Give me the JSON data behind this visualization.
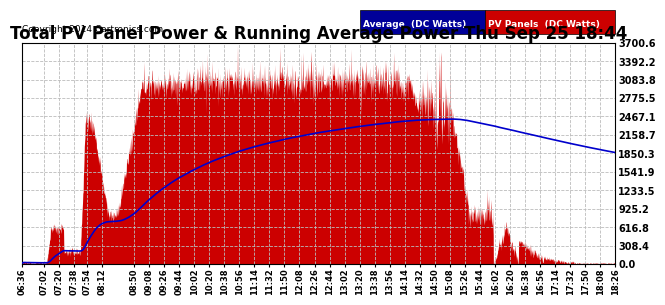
{
  "title": "Total PV Panel Power & Running Average Power Thu Sep 25 18:44",
  "copyright": "Copyright 2014 Cartronics.com",
  "legend_avg": "Average  (DC Watts)",
  "legend_pv": "PV Panels  (DC Watts)",
  "ymax": 3700.6,
  "ymin": 0.0,
  "yticks": [
    0.0,
    308.4,
    616.8,
    925.2,
    1233.5,
    1541.9,
    1850.3,
    2158.7,
    2467.1,
    2775.5,
    3083.8,
    3392.2,
    3700.6
  ],
  "bg_color": "#ffffff",
  "grid_color": "#bbbbbb",
  "pv_color": "#cc0000",
  "avg_color": "#0000cc",
  "title_fontsize": 12,
  "x_tick_labels": [
    "06:36",
    "07:02",
    "07:20",
    "07:38",
    "07:54",
    "08:12",
    "08:50",
    "09:08",
    "09:26",
    "09:44",
    "10:02",
    "10:20",
    "10:38",
    "10:56",
    "11:14",
    "11:32",
    "11:50",
    "12:08",
    "12:26",
    "12:44",
    "13:02",
    "13:20",
    "13:38",
    "13:56",
    "14:14",
    "14:32",
    "14:50",
    "15:08",
    "15:26",
    "15:44",
    "16:02",
    "16:20",
    "16:38",
    "16:56",
    "17:14",
    "17:32",
    "17:50",
    "18:08",
    "18:26"
  ]
}
